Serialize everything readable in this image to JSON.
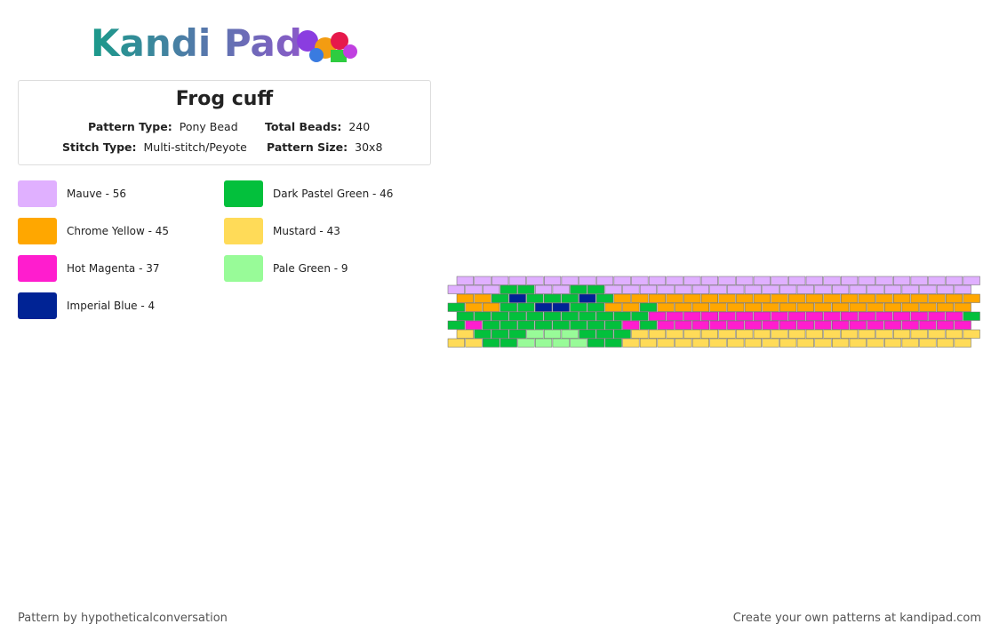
{
  "header": {
    "logo": "Kandi Pad"
  },
  "info": {
    "title": "Frog cuff",
    "rows": [
      {
        "label": "Pattern Type:",
        "value": "Pony Bead",
        "label2": "Total Beads:",
        "value2": "240"
      },
      {
        "label": "Stitch Type:",
        "value": "Multi-stitch/Peyote",
        "label2": "Pattern Size:",
        "value2": "30x8"
      }
    ]
  },
  "legend": [
    {
      "label": "Mauve - 56",
      "color": "#e0b0ff"
    },
    {
      "label": "Dark Pastel Green - 46",
      "color": "#03c03c"
    },
    {
      "label": "Chrome Yellow - 45",
      "color": "#ffa700"
    },
    {
      "label": "Mustard - 43",
      "color": "#ffdb58"
    },
    {
      "label": "Hot Magenta - 37",
      "color": "#ff1dce"
    },
    {
      "label": "Pale Green - 9",
      "color": "#98fb98"
    },
    {
      "label": "Imperial Blue - 4",
      "color": "#002395"
    }
  ],
  "footer": {
    "left": "Pattern by hypotheticalconversation",
    "right": "Create your own patterns at kandipad.com"
  }
}
